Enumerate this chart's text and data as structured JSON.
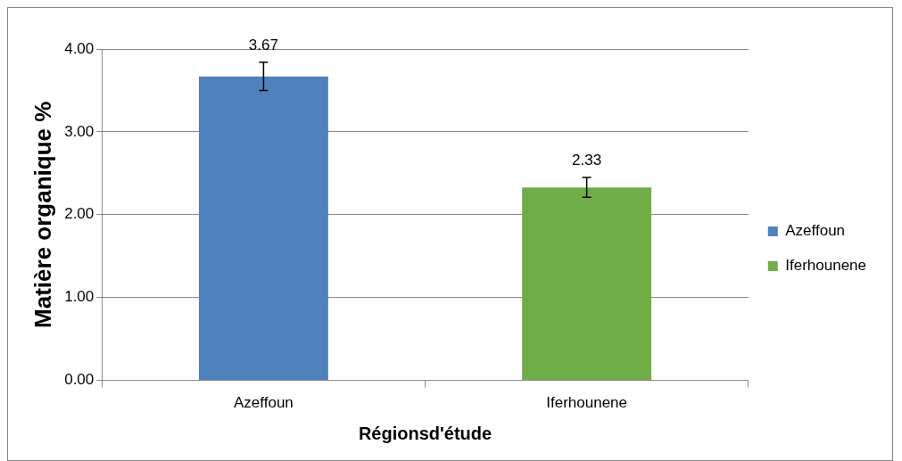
{
  "chart_data": {
    "type": "bar",
    "xlabel": "Régionsd'étude",
    "ylabel": "Matière organique %",
    "categories": [
      "Azeffoun",
      "Iferhounene"
    ],
    "series": [
      {
        "name": "Azeffoun",
        "color": "#4f81bd",
        "values": [
          3.67,
          null
        ],
        "errors": [
          0.17,
          null
        ]
      },
      {
        "name": "Iferhounene",
        "color": "#70ad47",
        "values": [
          null,
          2.33
        ],
        "errors": [
          null,
          0.12
        ]
      }
    ],
    "ylim": [
      0,
      4
    ],
    "yticks": [
      {
        "value": 0,
        "label": "0.00"
      },
      {
        "value": 1,
        "label": "1.00"
      },
      {
        "value": 2,
        "label": "2.00"
      },
      {
        "value": 3,
        "label": "3.00"
      },
      {
        "value": 4,
        "label": "4.00"
      }
    ],
    "grid": "y",
    "legend": "right",
    "data_labels": true
  }
}
